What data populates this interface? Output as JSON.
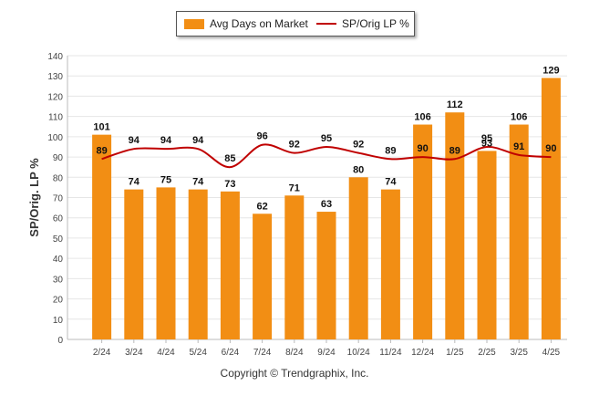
{
  "legend": {
    "bar_label": "Avg Days on Market",
    "line_label": "SP/Orig LP %"
  },
  "footer": {
    "copyright": "Copyright © Trendgraphix, Inc."
  },
  "colors": {
    "bar": "#F28E14",
    "line": "#C00000",
    "grid": "#e6e6e6"
  },
  "chart_data": {
    "type": "bar",
    "ylabel": "SP/Orig. LP %",
    "ylim": [
      0,
      140
    ],
    "ytick_step": 10,
    "grid": true,
    "legend_position": "top-center",
    "categories": [
      "2/24",
      "3/24",
      "4/24",
      "5/24",
      "6/24",
      "7/24",
      "8/24",
      "9/24",
      "10/24",
      "11/24",
      "12/24",
      "1/25",
      "2/25",
      "3/25",
      "4/25"
    ],
    "series": [
      {
        "name": "Avg Days on Market",
        "type": "bar",
        "values": [
          101,
          74,
          75,
          74,
          73,
          62,
          71,
          63,
          80,
          74,
          106,
          112,
          93,
          106,
          129
        ]
      },
      {
        "name": "SP/Orig LP %",
        "type": "line",
        "values": [
          89,
          94,
          94,
          94,
          85,
          96,
          92,
          95,
          92,
          89,
          90,
          89,
          95,
          91,
          90
        ]
      }
    ]
  }
}
